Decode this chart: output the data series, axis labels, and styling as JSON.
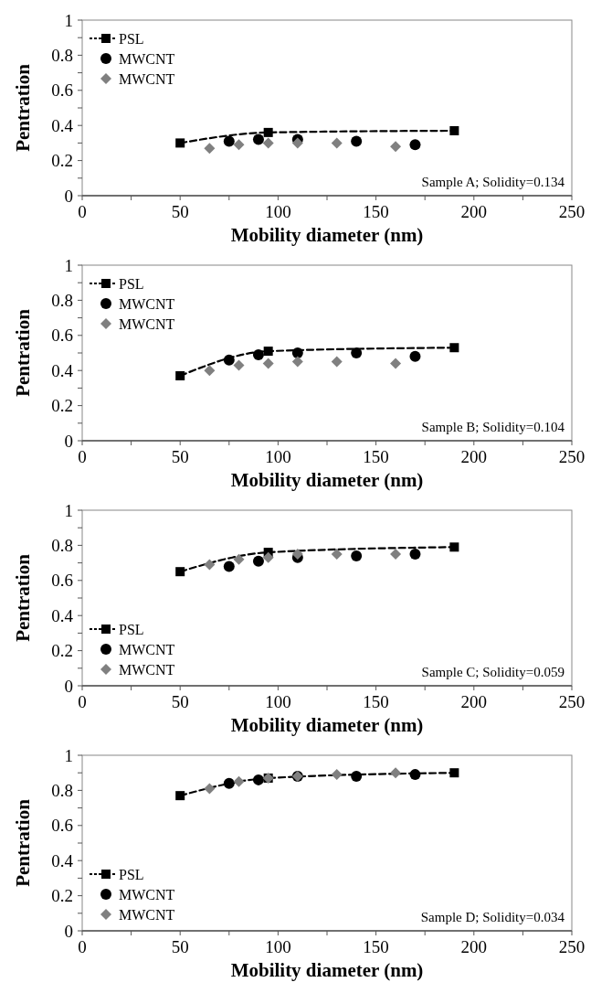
{
  "chart_data": [
    {
      "type": "scatter",
      "xlabel": "Mobility diameter (nm)",
      "ylabel": "Pentration",
      "annotations": [
        "Sample A; Solidity=0.134"
      ],
      "xlim": [
        0,
        250
      ],
      "xticks": [
        0,
        {
          "value": 25,
          "label": null
        },
        50,
        {
          "value": 75,
          "label": null
        },
        100,
        {
          "value": 125,
          "label": null
        },
        150,
        {
          "value": 175,
          "label": null
        },
        200,
        {
          "value": 225,
          "label": null
        },
        250
      ],
      "ylim": [
        0,
        1
      ],
      "yticks": [
        0,
        {
          "value": 0.1,
          "label": null
        },
        0.2,
        {
          "value": 0.3,
          "label": null
        },
        0.4,
        {
          "value": 0.5,
          "label": null
        },
        0.6,
        {
          "value": 0.7,
          "label": null
        },
        0.8,
        {
          "value": 0.9,
          "label": null
        },
        1
      ],
      "grid": false,
      "legend": "top left",
      "series": [
        {
          "name": "PSL",
          "type": "line",
          "marker": "square",
          "line_style": "dashed",
          "color": "#000000",
          "x": [
            50,
            95,
            190
          ],
          "values": [
            0.3,
            0.36,
            0.37
          ]
        },
        {
          "name": "MWCNT",
          "type": "scatter",
          "marker": "circle",
          "color": "#000000",
          "x": [
            75,
            90,
            110,
            140,
            170
          ],
          "values": [
            0.31,
            0.32,
            0.32,
            0.31,
            0.29
          ]
        },
        {
          "name": "MWCNT",
          "type": "scatter",
          "marker": "diamond",
          "color": "#808080",
          "x": [
            65,
            80,
            95,
            110,
            130,
            160
          ],
          "values": [
            0.27,
            0.29,
            0.3,
            0.3,
            0.3,
            0.28
          ]
        }
      ]
    },
    {
      "type": "scatter",
      "xlabel": "Mobility diameter (nm)",
      "ylabel": "Pentration",
      "annotations": [
        "Sample B; Solidity=0.104"
      ],
      "xlim": [
        0,
        250
      ],
      "xticks": [
        0,
        {
          "value": 25,
          "label": null
        },
        50,
        {
          "value": 75,
          "label": null
        },
        100,
        {
          "value": 125,
          "label": null
        },
        150,
        {
          "value": 175,
          "label": null
        },
        200,
        {
          "value": 225,
          "label": null
        },
        250
      ],
      "ylim": [
        0,
        1
      ],
      "yticks": [
        0,
        {
          "value": 0.1,
          "label": null
        },
        0.2,
        {
          "value": 0.3,
          "label": null
        },
        0.4,
        {
          "value": 0.5,
          "label": null
        },
        0.6,
        {
          "value": 0.7,
          "label": null
        },
        0.8,
        {
          "value": 0.9,
          "label": null
        },
        1
      ],
      "grid": false,
      "legend": "top left",
      "series": [
        {
          "name": "PSL",
          "type": "line",
          "marker": "square",
          "line_style": "dashed",
          "color": "#000000",
          "x": [
            50,
            95,
            190
          ],
          "values": [
            0.37,
            0.51,
            0.53
          ]
        },
        {
          "name": "MWCNT",
          "type": "scatter",
          "marker": "circle",
          "color": "#000000",
          "x": [
            75,
            90,
            110,
            140,
            170
          ],
          "values": [
            0.46,
            0.49,
            0.5,
            0.5,
            0.48
          ]
        },
        {
          "name": "MWCNT",
          "type": "scatter",
          "marker": "diamond",
          "color": "#808080",
          "x": [
            65,
            80,
            95,
            110,
            130,
            160
          ],
          "values": [
            0.4,
            0.43,
            0.44,
            0.45,
            0.45,
            0.44
          ]
        }
      ]
    },
    {
      "type": "scatter",
      "xlabel": "Mobility diameter (nm)",
      "ylabel": "Pentration",
      "annotations": [
        "Sample C; Solidity=0.059"
      ],
      "xlim": [
        0,
        250
      ],
      "xticks": [
        0,
        {
          "value": 25,
          "label": null
        },
        50,
        {
          "value": 75,
          "label": null
        },
        100,
        {
          "value": 125,
          "label": null
        },
        150,
        {
          "value": 175,
          "label": null
        },
        200,
        {
          "value": 225,
          "label": null
        },
        250
      ],
      "ylim": [
        0,
        1
      ],
      "yticks": [
        0,
        {
          "value": 0.1,
          "label": null
        },
        0.2,
        {
          "value": 0.3,
          "label": null
        },
        0.4,
        {
          "value": 0.5,
          "label": null
        },
        0.6,
        {
          "value": 0.7,
          "label": null
        },
        0.8,
        {
          "value": 0.9,
          "label": null
        },
        1
      ],
      "grid": false,
      "legend": "bottom left",
      "series": [
        {
          "name": "PSL",
          "type": "line",
          "marker": "square",
          "line_style": "dashed",
          "color": "#000000",
          "x": [
            50,
            95,
            190
          ],
          "values": [
            0.65,
            0.76,
            0.79
          ]
        },
        {
          "name": "MWCNT",
          "type": "scatter",
          "marker": "circle",
          "color": "#000000",
          "x": [
            75,
            90,
            110,
            140,
            170
          ],
          "values": [
            0.68,
            0.71,
            0.73,
            0.74,
            0.75
          ]
        },
        {
          "name": "MWCNT",
          "type": "scatter",
          "marker": "diamond",
          "color": "#808080",
          "x": [
            65,
            80,
            95,
            110,
            130,
            160
          ],
          "values": [
            0.69,
            0.72,
            0.73,
            0.75,
            0.75,
            0.75
          ]
        }
      ]
    },
    {
      "type": "scatter",
      "xlabel": "Mobility diameter (nm)",
      "ylabel": "Pentration",
      "annotations": [
        "Sample D; Solidity=0.034"
      ],
      "xlim": [
        0,
        250
      ],
      "xticks": [
        0,
        {
          "value": 25,
          "label": null
        },
        50,
        {
          "value": 75,
          "label": null
        },
        100,
        {
          "value": 125,
          "label": null
        },
        150,
        {
          "value": 175,
          "label": null
        },
        200,
        {
          "value": 225,
          "label": null
        },
        250
      ],
      "ylim": [
        0,
        1
      ],
      "yticks": [
        0,
        {
          "value": 0.1,
          "label": null
        },
        0.2,
        {
          "value": 0.3,
          "label": null
        },
        0.4,
        {
          "value": 0.5,
          "label": null
        },
        0.6,
        {
          "value": 0.7,
          "label": null
        },
        0.8,
        {
          "value": 0.9,
          "label": null
        },
        1
      ],
      "grid": false,
      "legend": "bottom left",
      "series": [
        {
          "name": "PSL",
          "type": "line",
          "marker": "square",
          "line_style": "dashed",
          "color": "#000000",
          "x": [
            50,
            95,
            190
          ],
          "values": [
            0.77,
            0.87,
            0.9
          ]
        },
        {
          "name": "MWCNT",
          "type": "scatter",
          "marker": "circle",
          "color": "#000000",
          "x": [
            75,
            90,
            110,
            140,
            170
          ],
          "values": [
            0.84,
            0.86,
            0.88,
            0.88,
            0.89
          ]
        },
        {
          "name": "MWCNT",
          "type": "scatter",
          "marker": "diamond",
          "color": "#808080",
          "x": [
            65,
            80,
            95,
            110,
            130,
            160
          ],
          "values": [
            0.81,
            0.85,
            0.87,
            0.88,
            0.89,
            0.9
          ]
        }
      ]
    }
  ]
}
